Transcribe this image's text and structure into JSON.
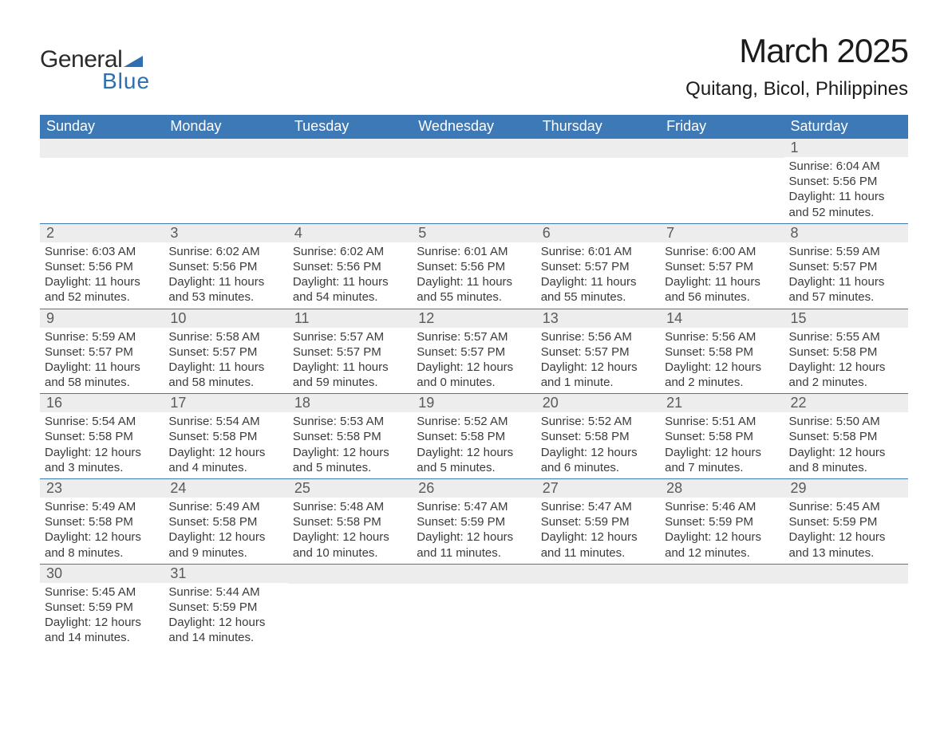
{
  "brand": {
    "general": "General",
    "blue": "Blue",
    "triangle_color": "#2e6fb0"
  },
  "title": "March 2025",
  "location": "Quitang, Bicol, Philippines",
  "colors": {
    "header_bg": "#3d79b6",
    "header_text": "#ffffff",
    "daynum_bg": "#ededed",
    "daynum_text": "#5a5a5a",
    "body_text": "#3b3b3b",
    "row_border": "#3d79b6",
    "page_bg": "#ffffff"
  },
  "typography": {
    "title_fontsize": 42,
    "location_fontsize": 24,
    "weekday_fontsize": 18,
    "daynum_fontsize": 18,
    "body_fontsize": 15
  },
  "weekdays": [
    "Sunday",
    "Monday",
    "Tuesday",
    "Wednesday",
    "Thursday",
    "Friday",
    "Saturday"
  ],
  "weeks": [
    [
      {
        "num": "",
        "sunrise": "",
        "sunset": "",
        "daylight": ""
      },
      {
        "num": "",
        "sunrise": "",
        "sunset": "",
        "daylight": ""
      },
      {
        "num": "",
        "sunrise": "",
        "sunset": "",
        "daylight": ""
      },
      {
        "num": "",
        "sunrise": "",
        "sunset": "",
        "daylight": ""
      },
      {
        "num": "",
        "sunrise": "",
        "sunset": "",
        "daylight": ""
      },
      {
        "num": "",
        "sunrise": "",
        "sunset": "",
        "daylight": ""
      },
      {
        "num": "1",
        "sunrise": "Sunrise: 6:04 AM",
        "sunset": "Sunset: 5:56 PM",
        "daylight": "Daylight: 11 hours and 52 minutes."
      }
    ],
    [
      {
        "num": "2",
        "sunrise": "Sunrise: 6:03 AM",
        "sunset": "Sunset: 5:56 PM",
        "daylight": "Daylight: 11 hours and 52 minutes."
      },
      {
        "num": "3",
        "sunrise": "Sunrise: 6:02 AM",
        "sunset": "Sunset: 5:56 PM",
        "daylight": "Daylight: 11 hours and 53 minutes."
      },
      {
        "num": "4",
        "sunrise": "Sunrise: 6:02 AM",
        "sunset": "Sunset: 5:56 PM",
        "daylight": "Daylight: 11 hours and 54 minutes."
      },
      {
        "num": "5",
        "sunrise": "Sunrise: 6:01 AM",
        "sunset": "Sunset: 5:56 PM",
        "daylight": "Daylight: 11 hours and 55 minutes."
      },
      {
        "num": "6",
        "sunrise": "Sunrise: 6:01 AM",
        "sunset": "Sunset: 5:57 PM",
        "daylight": "Daylight: 11 hours and 55 minutes."
      },
      {
        "num": "7",
        "sunrise": "Sunrise: 6:00 AM",
        "sunset": "Sunset: 5:57 PM",
        "daylight": "Daylight: 11 hours and 56 minutes."
      },
      {
        "num": "8",
        "sunrise": "Sunrise: 5:59 AM",
        "sunset": "Sunset: 5:57 PM",
        "daylight": "Daylight: 11 hours and 57 minutes."
      }
    ],
    [
      {
        "num": "9",
        "sunrise": "Sunrise: 5:59 AM",
        "sunset": "Sunset: 5:57 PM",
        "daylight": "Daylight: 11 hours and 58 minutes."
      },
      {
        "num": "10",
        "sunrise": "Sunrise: 5:58 AM",
        "sunset": "Sunset: 5:57 PM",
        "daylight": "Daylight: 11 hours and 58 minutes."
      },
      {
        "num": "11",
        "sunrise": "Sunrise: 5:57 AM",
        "sunset": "Sunset: 5:57 PM",
        "daylight": "Daylight: 11 hours and 59 minutes."
      },
      {
        "num": "12",
        "sunrise": "Sunrise: 5:57 AM",
        "sunset": "Sunset: 5:57 PM",
        "daylight": "Daylight: 12 hours and 0 minutes."
      },
      {
        "num": "13",
        "sunrise": "Sunrise: 5:56 AM",
        "sunset": "Sunset: 5:57 PM",
        "daylight": "Daylight: 12 hours and 1 minute."
      },
      {
        "num": "14",
        "sunrise": "Sunrise: 5:56 AM",
        "sunset": "Sunset: 5:58 PM",
        "daylight": "Daylight: 12 hours and 2 minutes."
      },
      {
        "num": "15",
        "sunrise": "Sunrise: 5:55 AM",
        "sunset": "Sunset: 5:58 PM",
        "daylight": "Daylight: 12 hours and 2 minutes."
      }
    ],
    [
      {
        "num": "16",
        "sunrise": "Sunrise: 5:54 AM",
        "sunset": "Sunset: 5:58 PM",
        "daylight": "Daylight: 12 hours and 3 minutes."
      },
      {
        "num": "17",
        "sunrise": "Sunrise: 5:54 AM",
        "sunset": "Sunset: 5:58 PM",
        "daylight": "Daylight: 12 hours and 4 minutes."
      },
      {
        "num": "18",
        "sunrise": "Sunrise: 5:53 AM",
        "sunset": "Sunset: 5:58 PM",
        "daylight": "Daylight: 12 hours and 5 minutes."
      },
      {
        "num": "19",
        "sunrise": "Sunrise: 5:52 AM",
        "sunset": "Sunset: 5:58 PM",
        "daylight": "Daylight: 12 hours and 5 minutes."
      },
      {
        "num": "20",
        "sunrise": "Sunrise: 5:52 AM",
        "sunset": "Sunset: 5:58 PM",
        "daylight": "Daylight: 12 hours and 6 minutes."
      },
      {
        "num": "21",
        "sunrise": "Sunrise: 5:51 AM",
        "sunset": "Sunset: 5:58 PM",
        "daylight": "Daylight: 12 hours and 7 minutes."
      },
      {
        "num": "22",
        "sunrise": "Sunrise: 5:50 AM",
        "sunset": "Sunset: 5:58 PM",
        "daylight": "Daylight: 12 hours and 8 minutes."
      }
    ],
    [
      {
        "num": "23",
        "sunrise": "Sunrise: 5:49 AM",
        "sunset": "Sunset: 5:58 PM",
        "daylight": "Daylight: 12 hours and 8 minutes."
      },
      {
        "num": "24",
        "sunrise": "Sunrise: 5:49 AM",
        "sunset": "Sunset: 5:58 PM",
        "daylight": "Daylight: 12 hours and 9 minutes."
      },
      {
        "num": "25",
        "sunrise": "Sunrise: 5:48 AM",
        "sunset": "Sunset: 5:58 PM",
        "daylight": "Daylight: 12 hours and 10 minutes."
      },
      {
        "num": "26",
        "sunrise": "Sunrise: 5:47 AM",
        "sunset": "Sunset: 5:59 PM",
        "daylight": "Daylight: 12 hours and 11 minutes."
      },
      {
        "num": "27",
        "sunrise": "Sunrise: 5:47 AM",
        "sunset": "Sunset: 5:59 PM",
        "daylight": "Daylight: 12 hours and 11 minutes."
      },
      {
        "num": "28",
        "sunrise": "Sunrise: 5:46 AM",
        "sunset": "Sunset: 5:59 PM",
        "daylight": "Daylight: 12 hours and 12 minutes."
      },
      {
        "num": "29",
        "sunrise": "Sunrise: 5:45 AM",
        "sunset": "Sunset: 5:59 PM",
        "daylight": "Daylight: 12 hours and 13 minutes."
      }
    ],
    [
      {
        "num": "30",
        "sunrise": "Sunrise: 5:45 AM",
        "sunset": "Sunset: 5:59 PM",
        "daylight": "Daylight: 12 hours and 14 minutes."
      },
      {
        "num": "31",
        "sunrise": "Sunrise: 5:44 AM",
        "sunset": "Sunset: 5:59 PM",
        "daylight": "Daylight: 12 hours and 14 minutes."
      },
      {
        "num": "",
        "sunrise": "",
        "sunset": "",
        "daylight": ""
      },
      {
        "num": "",
        "sunrise": "",
        "sunset": "",
        "daylight": ""
      },
      {
        "num": "",
        "sunrise": "",
        "sunset": "",
        "daylight": ""
      },
      {
        "num": "",
        "sunrise": "",
        "sunset": "",
        "daylight": ""
      },
      {
        "num": "",
        "sunrise": "",
        "sunset": "",
        "daylight": ""
      }
    ]
  ]
}
